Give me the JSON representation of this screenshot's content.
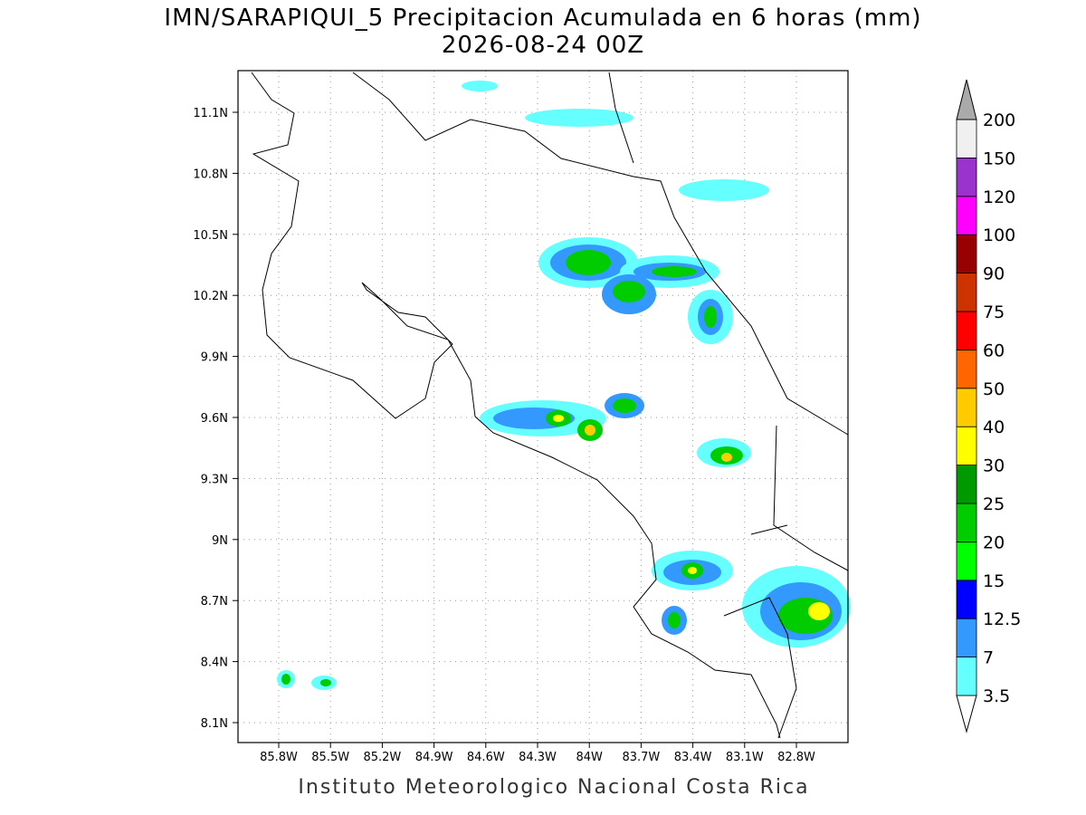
{
  "title": "IMN/SARAPIQUI_5 Precipitacion Acumulada en 6 horas (mm)",
  "subtitle": "2026-08-24 00Z",
  "lat_labels": [
    "11.1N",
    "10.8N",
    "10.5N",
    "10.2N",
    "9.9N",
    "9.6N",
    "9.3N",
    "9N",
    "8.7N",
    "8.4N",
    "8.1N"
  ],
  "lon_labels": [
    "85.8W",
    "85.5W",
    "85.2W",
    "84.9W",
    "84.6W",
    "84.3W",
    "84W",
    "83.7W",
    "83.4W",
    "83.1W",
    "82.8W"
  ],
  "colorbar": {
    "levels": [
      "3.5",
      "7",
      "12.5",
      "15",
      "20",
      "25",
      "30",
      "40",
      "50",
      "60",
      "75",
      "90",
      "100",
      "120",
      "150",
      "200"
    ],
    "colors": [
      "#ffffff",
      "#66ffff",
      "#3399ff",
      "#0000ff",
      "#00ff00",
      "#00cc00",
      "#009900",
      "#ffff00",
      "#ffcc00",
      "#ff6600",
      "#ff0000",
      "#cc3300",
      "#990000",
      "#ff00ff",
      "#9933cc",
      "#f0f0f0",
      "#aaaaaa"
    ]
  },
  "footer": "Instituto Meteorologico Nacional Costa Rica"
}
